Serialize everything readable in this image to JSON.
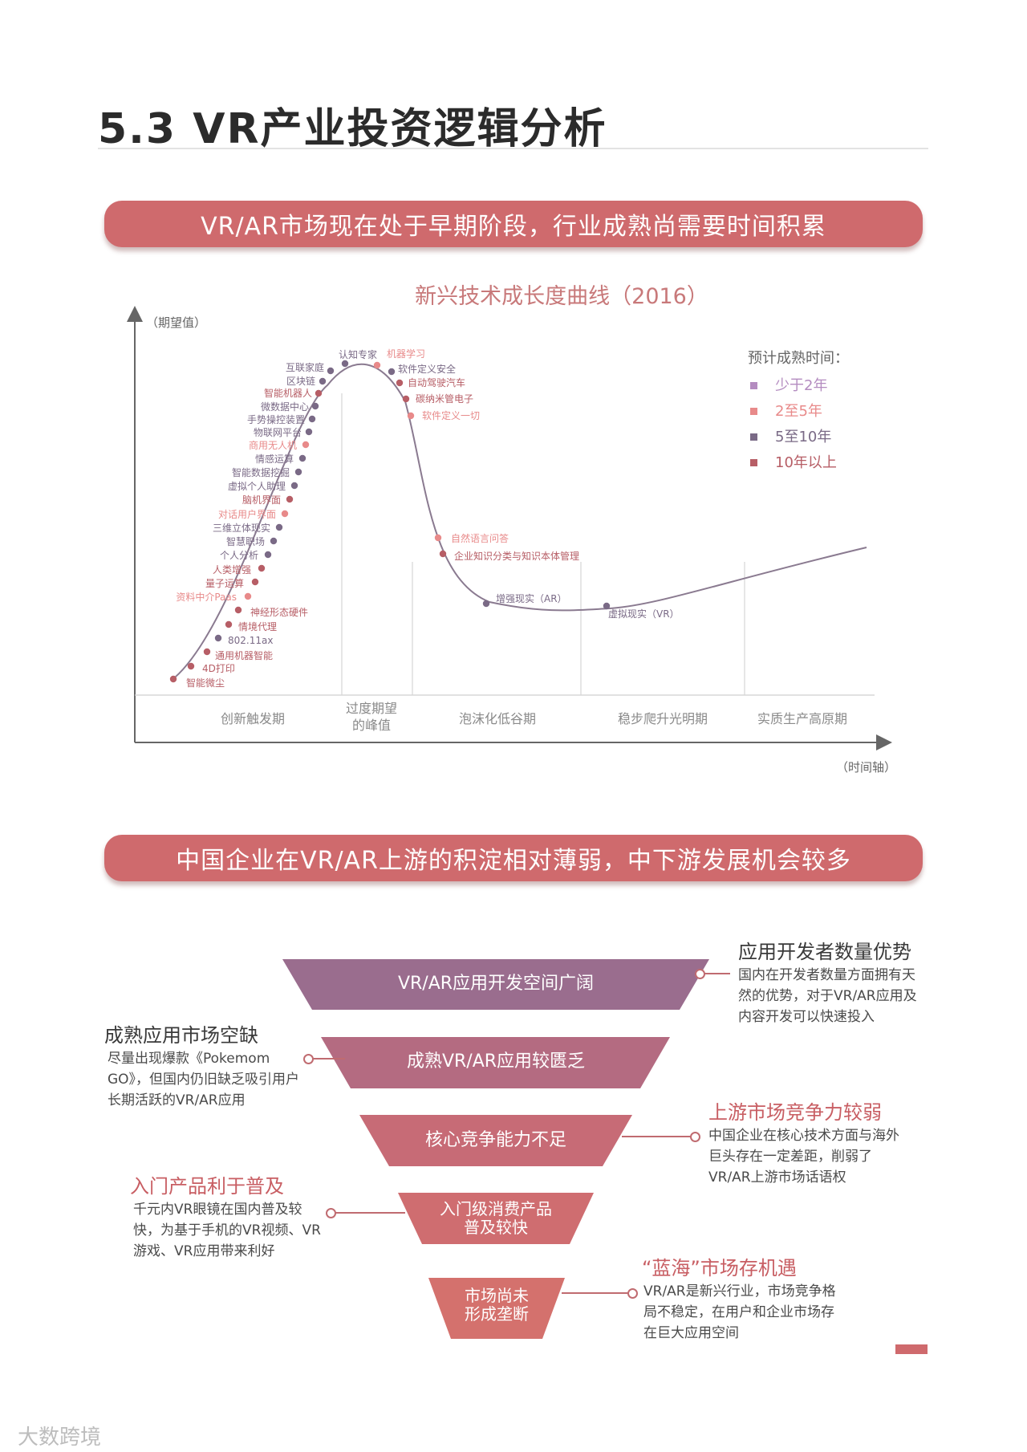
{
  "page": {
    "title": "5.3 VR产业投资逻辑分析",
    "banner1": "VR/AR市场现在处于早期阶段，行业成熟尚需要时间积累",
    "banner2": "中国企业在VR/AR上游的积淀相对薄弱，中下游发展机会较多",
    "watermark": "大数跨境"
  },
  "chart_data": {
    "type": "line",
    "title": "新兴技术成长度曲线（2016）",
    "ylabel": "（期望值）",
    "xlabel": "（时间轴）",
    "phases": [
      "创新触发期",
      "过度期望\n的峰值",
      "泡沫化低谷期",
      "稳步爬升光明期",
      "实质生产高原期"
    ],
    "legend_title": "预计成熟时间：",
    "legend": [
      {
        "label": "少于2年",
        "color": "#b48cc0"
      },
      {
        "label": "2至5年",
        "color": "#e88a8a"
      },
      {
        "label": "5至10年",
        "color": "#7a6a86"
      },
      {
        "label": "10年以上",
        "color": "#b75e66"
      }
    ],
    "technologies": [
      {
        "name": "智能微尘",
        "group": 3
      },
      {
        "name": "4D打印",
        "group": 3
      },
      {
        "name": "通用机器智能",
        "group": 3
      },
      {
        "name": "802.11ax",
        "group": 2
      },
      {
        "name": "情境代理",
        "group": 3
      },
      {
        "name": "神经形态硬件",
        "group": 3
      },
      {
        "name": "资料中介Paas",
        "group": 1
      },
      {
        "name": "量子运算",
        "group": 3
      },
      {
        "name": "人类增强",
        "group": 3
      },
      {
        "name": "个人分析",
        "group": 2
      },
      {
        "name": "智慧职场",
        "group": 2
      },
      {
        "name": "三维立体现实",
        "group": 2
      },
      {
        "name": "对话用户界面",
        "group": 1
      },
      {
        "name": "脑机界面",
        "group": 3
      },
      {
        "name": "虚拟个人助理",
        "group": 2
      },
      {
        "name": "智能数据挖掘",
        "group": 2
      },
      {
        "name": "情感运算",
        "group": 2
      },
      {
        "name": "商用无人机",
        "group": 1
      },
      {
        "name": "物联网平台",
        "group": 2
      },
      {
        "name": "手势操控装置",
        "group": 2
      },
      {
        "name": "微数据中心",
        "group": 2
      },
      {
        "name": "智能机器人",
        "group": 3
      },
      {
        "name": "区块链",
        "group": 2
      },
      {
        "name": "互联家庭",
        "group": 2
      },
      {
        "name": "认知专家",
        "group": 2
      },
      {
        "name": "机器学习",
        "group": 1
      },
      {
        "name": "软件定义安全",
        "group": 2
      },
      {
        "name": "自动驾驶汽车",
        "group": 3
      },
      {
        "name": "碳纳米管电子",
        "group": 3
      },
      {
        "name": "软件定义一切",
        "group": 1
      },
      {
        "name": "自然语言问答",
        "group": 1
      },
      {
        "name": "企业知识分类与知识本体管理",
        "group": 3
      },
      {
        "name": "增强现实（AR）",
        "group": 2
      },
      {
        "name": "虚拟现实（VR）",
        "group": 2
      }
    ]
  },
  "funnel": {
    "layers": [
      {
        "label": "VR/AR应用开发空间广阔",
        "color": "#9a6d8e"
      },
      {
        "label": "成熟VR/AR应用较匮乏",
        "color": "#b46b81"
      },
      {
        "label": "核心竞争能力不足",
        "color": "#c76b76"
      },
      {
        "label": "入门级消费产品\n普及较快",
        "color": "#cf6d70"
      },
      {
        "label": "市场尚未\n形成垄断",
        "color": "#d4716d"
      }
    ],
    "notes": [
      {
        "title": "应用开发者数量优势",
        "body": "国内在开发者数量方面拥有天然的优势，对于VR/AR应用及内容开发可以快速投入"
      },
      {
        "title": "成熟应用市场空缺",
        "body": "尽量出现爆款《Pokemom GO》，但国内仍旧缺乏吸引用户长期活跃的VR/AR应用"
      },
      {
        "title": "上游市场竞争力较弱",
        "body": "中国企业在核心技术方面与海外巨头存在一定差距，削弱了VR/AR上游市场话语权"
      },
      {
        "title": "入门产品利于普及",
        "body": "千元内VR眼镜在国内普及较快，为基于手机的VR视频、VR游戏、VR应用带来利好"
      },
      {
        "title": "“蓝海”市场存机遇",
        "body": "VR/AR是新兴行业，市场竞争格局不稳定，在用户和企业市场存在巨大应用空间"
      }
    ]
  }
}
